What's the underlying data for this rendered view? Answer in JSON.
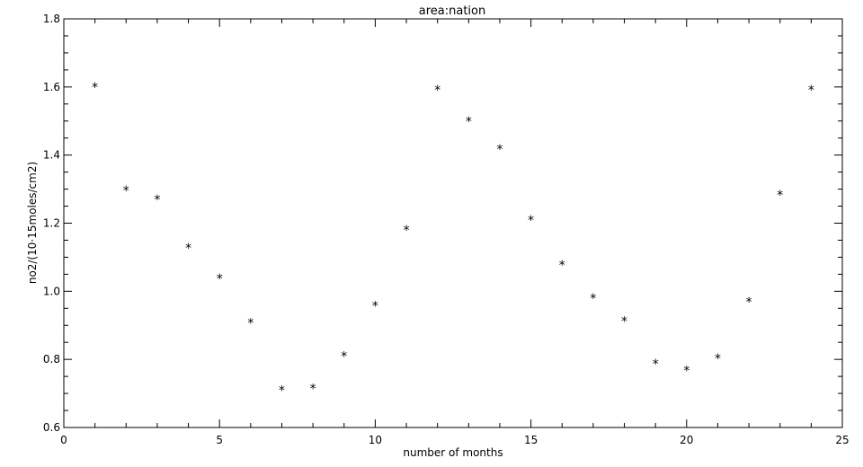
{
  "chart_data": {
    "type": "scatter",
    "title": "area:nation",
    "xlabel": "number of months",
    "ylabel": "no2/(10·15moles/cm2)",
    "xlim": [
      0,
      25
    ],
    "ylim": [
      0.6,
      1.8
    ],
    "xticks": [
      0,
      5,
      10,
      15,
      20,
      25
    ],
    "xtick_labels": [
      "0",
      "5",
      "10",
      "15",
      "20",
      "25"
    ],
    "yticks": [
      0.6,
      0.8,
      1.0,
      1.2,
      1.4,
      1.6,
      1.8
    ],
    "ytick_labels": [
      "0.6",
      "0.8",
      "1.0",
      "1.2",
      "1.4",
      "1.6",
      "1.8"
    ],
    "marker": "*",
    "grid": false,
    "x": [
      1,
      2,
      3,
      4,
      5,
      6,
      7,
      8,
      9,
      10,
      11,
      12,
      13,
      14,
      15,
      16,
      17,
      18,
      19,
      20,
      21,
      22,
      23,
      24
    ],
    "y": [
      1.605,
      1.302,
      1.275,
      1.133,
      1.043,
      0.913,
      0.715,
      0.72,
      0.815,
      0.963,
      1.185,
      1.597,
      1.505,
      1.423,
      1.215,
      1.082,
      0.985,
      0.918,
      0.793,
      0.773,
      0.808,
      0.975,
      1.288,
      1.597
    ]
  }
}
